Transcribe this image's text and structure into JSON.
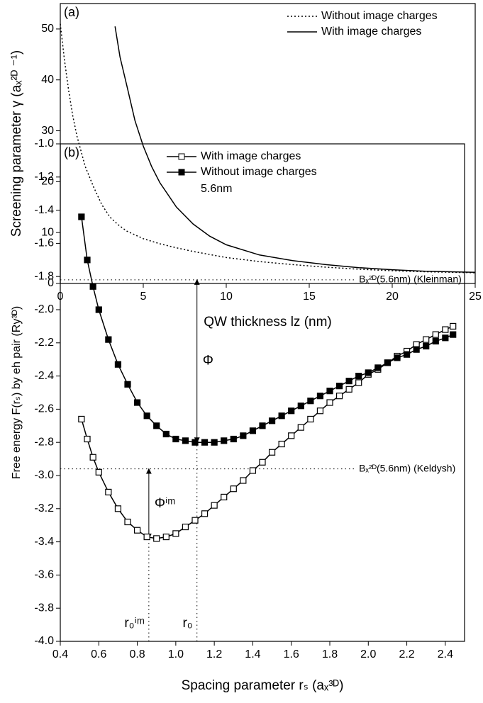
{
  "chart_data": [
    {
      "type": "line",
      "annotation": "(a)",
      "x_label": "QW thickness lz (nm)",
      "y_label": "Screening parameter γ (aₓ²ᴰ ⁻¹)",
      "xlim": [
        0,
        25
      ],
      "ylim": [
        0,
        55
      ],
      "xticks": [
        0,
        5,
        10,
        15,
        20,
        25
      ],
      "yticks": [
        0,
        10,
        20,
        30,
        40,
        50
      ],
      "legend": "upper right",
      "series": [
        {
          "name": "Without image charges",
          "color": "#000000",
          "style": "dotted",
          "x": [
            0,
            0.25,
            0.5,
            0.75,
            1,
            1.5,
            2,
            2.5,
            3,
            3.5,
            4,
            5,
            6,
            7,
            8,
            9,
            10,
            12,
            14,
            16,
            18,
            20,
            22,
            25
          ],
          "values": [
            51,
            44,
            38,
            33,
            29,
            23,
            19,
            15.5,
            13,
            11.5,
            10.3,
            8.8,
            7.8,
            7,
            6.3,
            5.7,
            5.1,
            4.3,
            3.7,
            3.2,
            2.8,
            2.5,
            2.3,
            2.1
          ]
        },
        {
          "name": "With image charges",
          "color": "#000000",
          "style": "solid",
          "x": [
            3.3,
            3.6,
            4,
            4.5,
            5,
            5.5,
            6,
            7,
            8,
            9,
            10,
            12,
            14,
            16,
            18,
            20,
            22,
            25
          ],
          "values": [
            50.5,
            44.5,
            39,
            32,
            27,
            23,
            19.8,
            15,
            11.7,
            9.3,
            7.6,
            5.6,
            4.5,
            3.7,
            3.1,
            2.7,
            2.4,
            2.2
          ]
        }
      ]
    },
    {
      "type": "line",
      "annotation": "(b)",
      "x_label": "Spacing parameter rₛ (aₓ³ᴰ)",
      "y_label": "Free energy F(rₛ) by eh pair (Ry³ᴰ)",
      "xlim": [
        0.4,
        2.5
      ],
      "ylim": [
        -4,
        -1
      ],
      "xticks": [
        0.4,
        0.6,
        0.8,
        {
          "value": 1,
          "label": "1.0"
        },
        1.2,
        1.4,
        1.6,
        1.8,
        {
          "value": 2,
          "label": "2.0"
        },
        2.2,
        2.4
      ],
      "yticks": [
        {
          "value": -1,
          "label": "-1.0"
        },
        -1.2,
        -1.4,
        -1.6,
        -1.8,
        {
          "value": -2,
          "label": "-2.0"
        },
        -2.2,
        -2.4,
        -2.6,
        -2.8,
        {
          "value": -3,
          "label": "-3.0"
        },
        -3.2,
        -3.4,
        -3.6,
        -3.8,
        {
          "value": -4,
          "label": "-4.0"
        }
      ],
      "legend": "upper left",
      "legend_note": "5.6nm",
      "x": [
        0.51,
        0.54,
        0.57,
        0.6,
        0.65,
        0.7,
        0.75,
        0.8,
        0.85,
        0.9,
        0.95,
        1.0,
        1.05,
        1.1,
        1.15,
        1.2,
        1.25,
        1.3,
        1.35,
        1.4,
        1.45,
        1.5,
        1.55,
        1.6,
        1.65,
        1.7,
        1.75,
        1.8,
        1.85,
        1.9,
        1.95,
        2.0,
        2.05,
        2.1,
        2.15,
        2.2,
        2.25,
        2.3,
        2.35,
        2.4,
        2.44
      ],
      "series": [
        {
          "name": "With image charges",
          "color": "#000000",
          "style": "solid",
          "marker": "open-square",
          "values": [
            -2.66,
            -2.78,
            -2.89,
            -2.98,
            -3.1,
            -3.2,
            -3.28,
            -3.33,
            -3.37,
            -3.38,
            -3.37,
            -3.35,
            -3.31,
            -3.27,
            -3.23,
            -3.18,
            -3.13,
            -3.08,
            -3.03,
            -2.97,
            -2.92,
            -2.86,
            -2.81,
            -2.76,
            -2.71,
            -2.66,
            -2.61,
            -2.56,
            -2.52,
            -2.48,
            -2.44,
            -2.39,
            -2.36,
            -2.32,
            -2.28,
            -2.25,
            -2.21,
            -2.18,
            -2.15,
            -2.12,
            -2.1
          ]
        },
        {
          "name": "Without image charges",
          "color": "#000000",
          "style": "solid",
          "marker": "filled-square",
          "values": [
            -1.44,
            -1.7,
            -1.86,
            -2.0,
            -2.18,
            -2.33,
            -2.45,
            -2.56,
            -2.64,
            -2.7,
            -2.75,
            -2.78,
            -2.79,
            -2.8,
            -2.8,
            -2.8,
            -2.79,
            -2.78,
            -2.76,
            -2.73,
            -2.7,
            -2.67,
            -2.64,
            -2.61,
            -2.58,
            -2.55,
            -2.52,
            -2.49,
            -2.46,
            -2.43,
            -2.4,
            -2.38,
            -2.35,
            -2.32,
            -2.29,
            -2.27,
            -2.24,
            -2.22,
            -2.19,
            -2.17,
            -2.15
          ]
        }
      ],
      "reference_lines": [
        {
          "y": -1.82,
          "label": "Bₓ²ᴰ(5.6nm) (Kleinman)"
        },
        {
          "y": -2.96,
          "label": "Bₓ²ᴰ(5.6nm) (Keldysh)"
        }
      ],
      "arrows": [
        {
          "x": 0.86,
          "from": -2.96,
          "to": -3.38,
          "label": "Φⁱᵐ"
        },
        {
          "x": 1.11,
          "from": -1.82,
          "to": -2.8,
          "label": "Φ"
        }
      ],
      "vertical_lines": [
        {
          "x": 0.86,
          "label": "r₀ⁱᵐ"
        },
        {
          "x": 1.11,
          "label": "r₀"
        }
      ]
    }
  ]
}
